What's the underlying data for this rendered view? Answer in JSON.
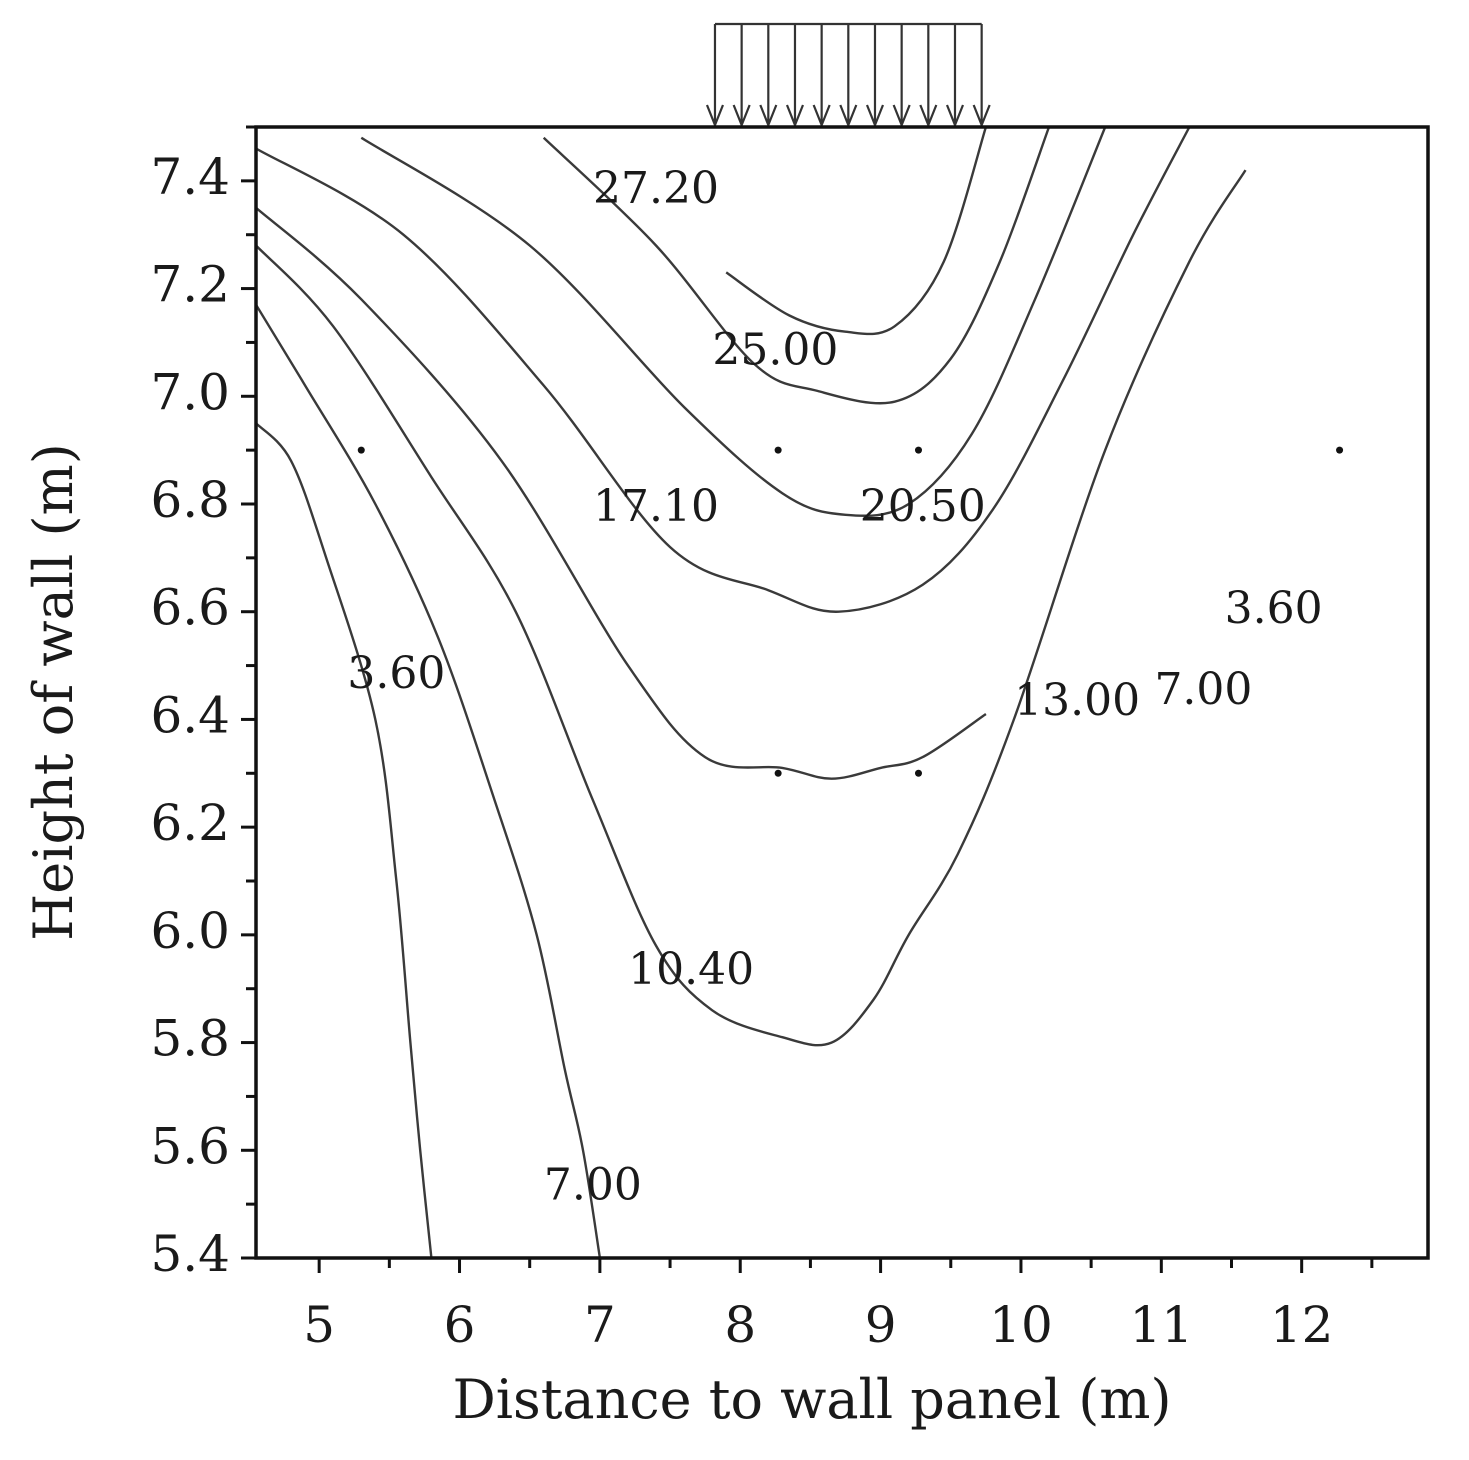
{
  "chart_data": {
    "type": "contour",
    "xlabel": "Distance to wall panel (m)",
    "ylabel": "Height of wall (m)",
    "xlim": [
      4.55,
      12.9
    ],
    "ylim": [
      5.4,
      7.5
    ],
    "x_ticks": [
      5,
      6,
      7,
      8,
      9,
      10,
      11,
      12
    ],
    "x_tick_labels": [
      "5",
      "6",
      "7",
      "8",
      "9",
      "10",
      "11",
      "12"
    ],
    "y_ticks": [
      5.4,
      5.6,
      5.8,
      6.0,
      6.2,
      6.4,
      6.6,
      6.8,
      7.0,
      7.2,
      7.4
    ],
    "y_tick_labels": [
      "5.4",
      "5.6",
      "5.8",
      "6.0",
      "6.2",
      "6.4",
      "6.6",
      "6.8",
      "7.0",
      "7.2",
      "7.4"
    ],
    "contours": [
      {
        "label": "3.60",
        "points": [
          [
            4.55,
            6.95
          ],
          [
            4.8,
            6.88
          ],
          [
            5.05,
            6.7
          ],
          [
            5.4,
            6.4
          ],
          [
            5.55,
            6.1
          ],
          [
            5.65,
            5.8
          ],
          [
            5.72,
            5.6
          ],
          [
            5.8,
            5.4
          ]
        ]
      },
      {
        "label": "7.00",
        "points": [
          [
            4.55,
            7.17
          ],
          [
            4.9,
            7.02
          ],
          [
            5.4,
            6.8
          ],
          [
            5.85,
            6.55
          ],
          [
            6.25,
            6.25
          ],
          [
            6.55,
            6.0
          ],
          [
            6.75,
            5.75
          ],
          [
            6.88,
            5.6
          ],
          [
            7.0,
            5.4
          ]
        ]
      },
      {
        "label": "10.40",
        "points": [
          [
            4.55,
            7.28
          ],
          [
            5.1,
            7.13
          ],
          [
            5.8,
            6.85
          ],
          [
            6.4,
            6.6
          ],
          [
            6.95,
            6.25
          ],
          [
            7.4,
            5.98
          ],
          [
            7.8,
            5.86
          ],
          [
            8.3,
            5.81
          ],
          [
            8.65,
            5.8
          ],
          [
            8.95,
            5.88
          ],
          [
            9.2,
            6.0
          ],
          [
            9.55,
            6.15
          ],
          [
            9.95,
            6.4
          ],
          [
            10.6,
            6.9
          ],
          [
            11.2,
            7.25
          ],
          [
            11.6,
            7.42
          ]
        ]
      },
      {
        "label": "13.00",
        "points": [
          [
            4.55,
            7.35
          ],
          [
            5.3,
            7.18
          ],
          [
            6.3,
            6.88
          ],
          [
            7.2,
            6.5
          ],
          [
            7.75,
            6.33
          ],
          [
            8.3,
            6.31
          ],
          [
            8.65,
            6.29
          ],
          [
            9.0,
            6.31
          ],
          [
            9.3,
            6.33
          ],
          [
            9.75,
            6.41
          ]
        ]
      },
      {
        "label": "17.10",
        "points": [
          [
            4.55,
            7.46
          ],
          [
            5.6,
            7.3
          ],
          [
            6.6,
            7.02
          ],
          [
            7.5,
            6.72
          ],
          [
            8.2,
            6.64
          ],
          [
            8.7,
            6.6
          ],
          [
            9.3,
            6.65
          ],
          [
            9.8,
            6.79
          ],
          [
            10.3,
            7.03
          ],
          [
            10.8,
            7.3
          ],
          [
            11.2,
            7.5
          ]
        ]
      },
      {
        "label": "20.50",
        "points": [
          [
            5.3,
            7.48
          ],
          [
            6.5,
            7.28
          ],
          [
            7.6,
            6.98
          ],
          [
            8.3,
            6.82
          ],
          [
            8.75,
            6.78
          ],
          [
            9.2,
            6.8
          ],
          [
            9.65,
            6.93
          ],
          [
            10.1,
            7.18
          ],
          [
            10.6,
            7.5
          ]
        ]
      },
      {
        "label": "25.00",
        "points": [
          [
            6.6,
            7.48
          ],
          [
            7.4,
            7.28
          ],
          [
            8.1,
            7.06
          ],
          [
            8.55,
            7.01
          ],
          [
            9.1,
            6.99
          ],
          [
            9.5,
            7.07
          ],
          [
            9.85,
            7.25
          ],
          [
            10.2,
            7.5
          ]
        ]
      },
      {
        "label": "27.20",
        "points": [
          [
            7.9,
            7.23
          ],
          [
            8.35,
            7.15
          ],
          [
            8.75,
            7.12
          ],
          [
            9.1,
            7.13
          ],
          [
            9.45,
            7.25
          ],
          [
            9.75,
            7.5
          ]
        ]
      }
    ],
    "contour_labels": [
      {
        "text": "27.20",
        "x": 7.4,
        "y": 7.38
      },
      {
        "text": "25.00",
        "x": 8.25,
        "y": 7.08
      },
      {
        "text": "17.10",
        "x": 7.4,
        "y": 6.79
      },
      {
        "text": "20.50",
        "x": 9.3,
        "y": 6.79
      },
      {
        "text": "13.00",
        "x": 10.4,
        "y": 6.43
      },
      {
        "text": "7.00",
        "x": 11.3,
        "y": 6.45
      },
      {
        "text": "3.60",
        "x": 11.8,
        "y": 6.6
      },
      {
        "text": "3.60",
        "x": 5.55,
        "y": 6.48
      },
      {
        "text": "10.40",
        "x": 7.65,
        "y": 5.93
      },
      {
        "text": "7.00",
        "x": 6.95,
        "y": 5.53
      }
    ],
    "measurement_points": [
      [
        5.3,
        6.9
      ],
      [
        8.27,
        6.9
      ],
      [
        9.27,
        6.9
      ],
      [
        12.27,
        6.9
      ],
      [
        8.27,
        6.3
      ],
      [
        9.27,
        6.3
      ]
    ],
    "load": {
      "type": "distributed",
      "x_start": 7.82,
      "x_end": 9.72,
      "arrow_count": 11
    }
  }
}
